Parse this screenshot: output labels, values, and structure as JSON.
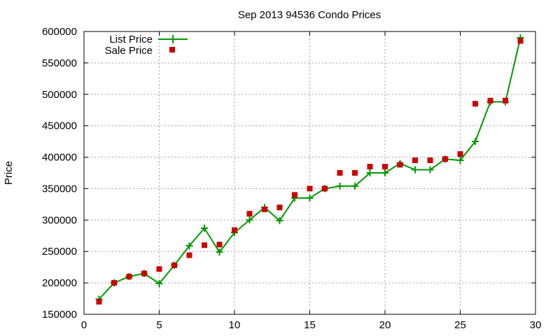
{
  "chart_data": {
    "type": "line",
    "title": "Sep 2013 94536 Condo Prices",
    "xlabel": "",
    "ylabel": "Price",
    "xlim": [
      0,
      30
    ],
    "ylim": [
      150000,
      600000
    ],
    "x_ticks": [
      0,
      5,
      10,
      15,
      20,
      25,
      30
    ],
    "y_ticks": [
      150000,
      200000,
      250000,
      300000,
      350000,
      400000,
      450000,
      500000,
      550000,
      600000
    ],
    "grid": true,
    "legend_position": "top-left",
    "series": [
      {
        "name": "List Price",
        "style": "line-with-plus-markers",
        "color": "#009900",
        "x": [
          1,
          2,
          3,
          4,
          5,
          6,
          7,
          8,
          9,
          10,
          11,
          12,
          13,
          14,
          15,
          16,
          17,
          18,
          19,
          20,
          21,
          22,
          23,
          24,
          25,
          26,
          27,
          28,
          29
        ],
        "y": [
          174000,
          200000,
          210000,
          215000,
          199000,
          228000,
          259000,
          287000,
          249000,
          280000,
          300000,
          320000,
          299000,
          335000,
          335000,
          350000,
          354000,
          354000,
          375000,
          375000,
          390000,
          380000,
          380000,
          397000,
          395000,
          425000,
          488000,
          488000,
          590000
        ]
      },
      {
        "name": "Sale Price",
        "style": "square-markers",
        "color": "#cc0000",
        "x": [
          1,
          2,
          3,
          4,
          5,
          6,
          7,
          8,
          9,
          10,
          11,
          12,
          13,
          14,
          15,
          16,
          17,
          18,
          19,
          20,
          21,
          22,
          23,
          24,
          25,
          26,
          27,
          28,
          29
        ],
        "y": [
          170000,
          200000,
          210000,
          215000,
          222000,
          228000,
          244000,
          260000,
          261000,
          284000,
          310000,
          317000,
          320000,
          340000,
          350000,
          350000,
          375000,
          375000,
          385000,
          385000,
          388000,
          395000,
          395000,
          397000,
          405000,
          485000,
          490000,
          490000,
          585000
        ]
      }
    ]
  }
}
